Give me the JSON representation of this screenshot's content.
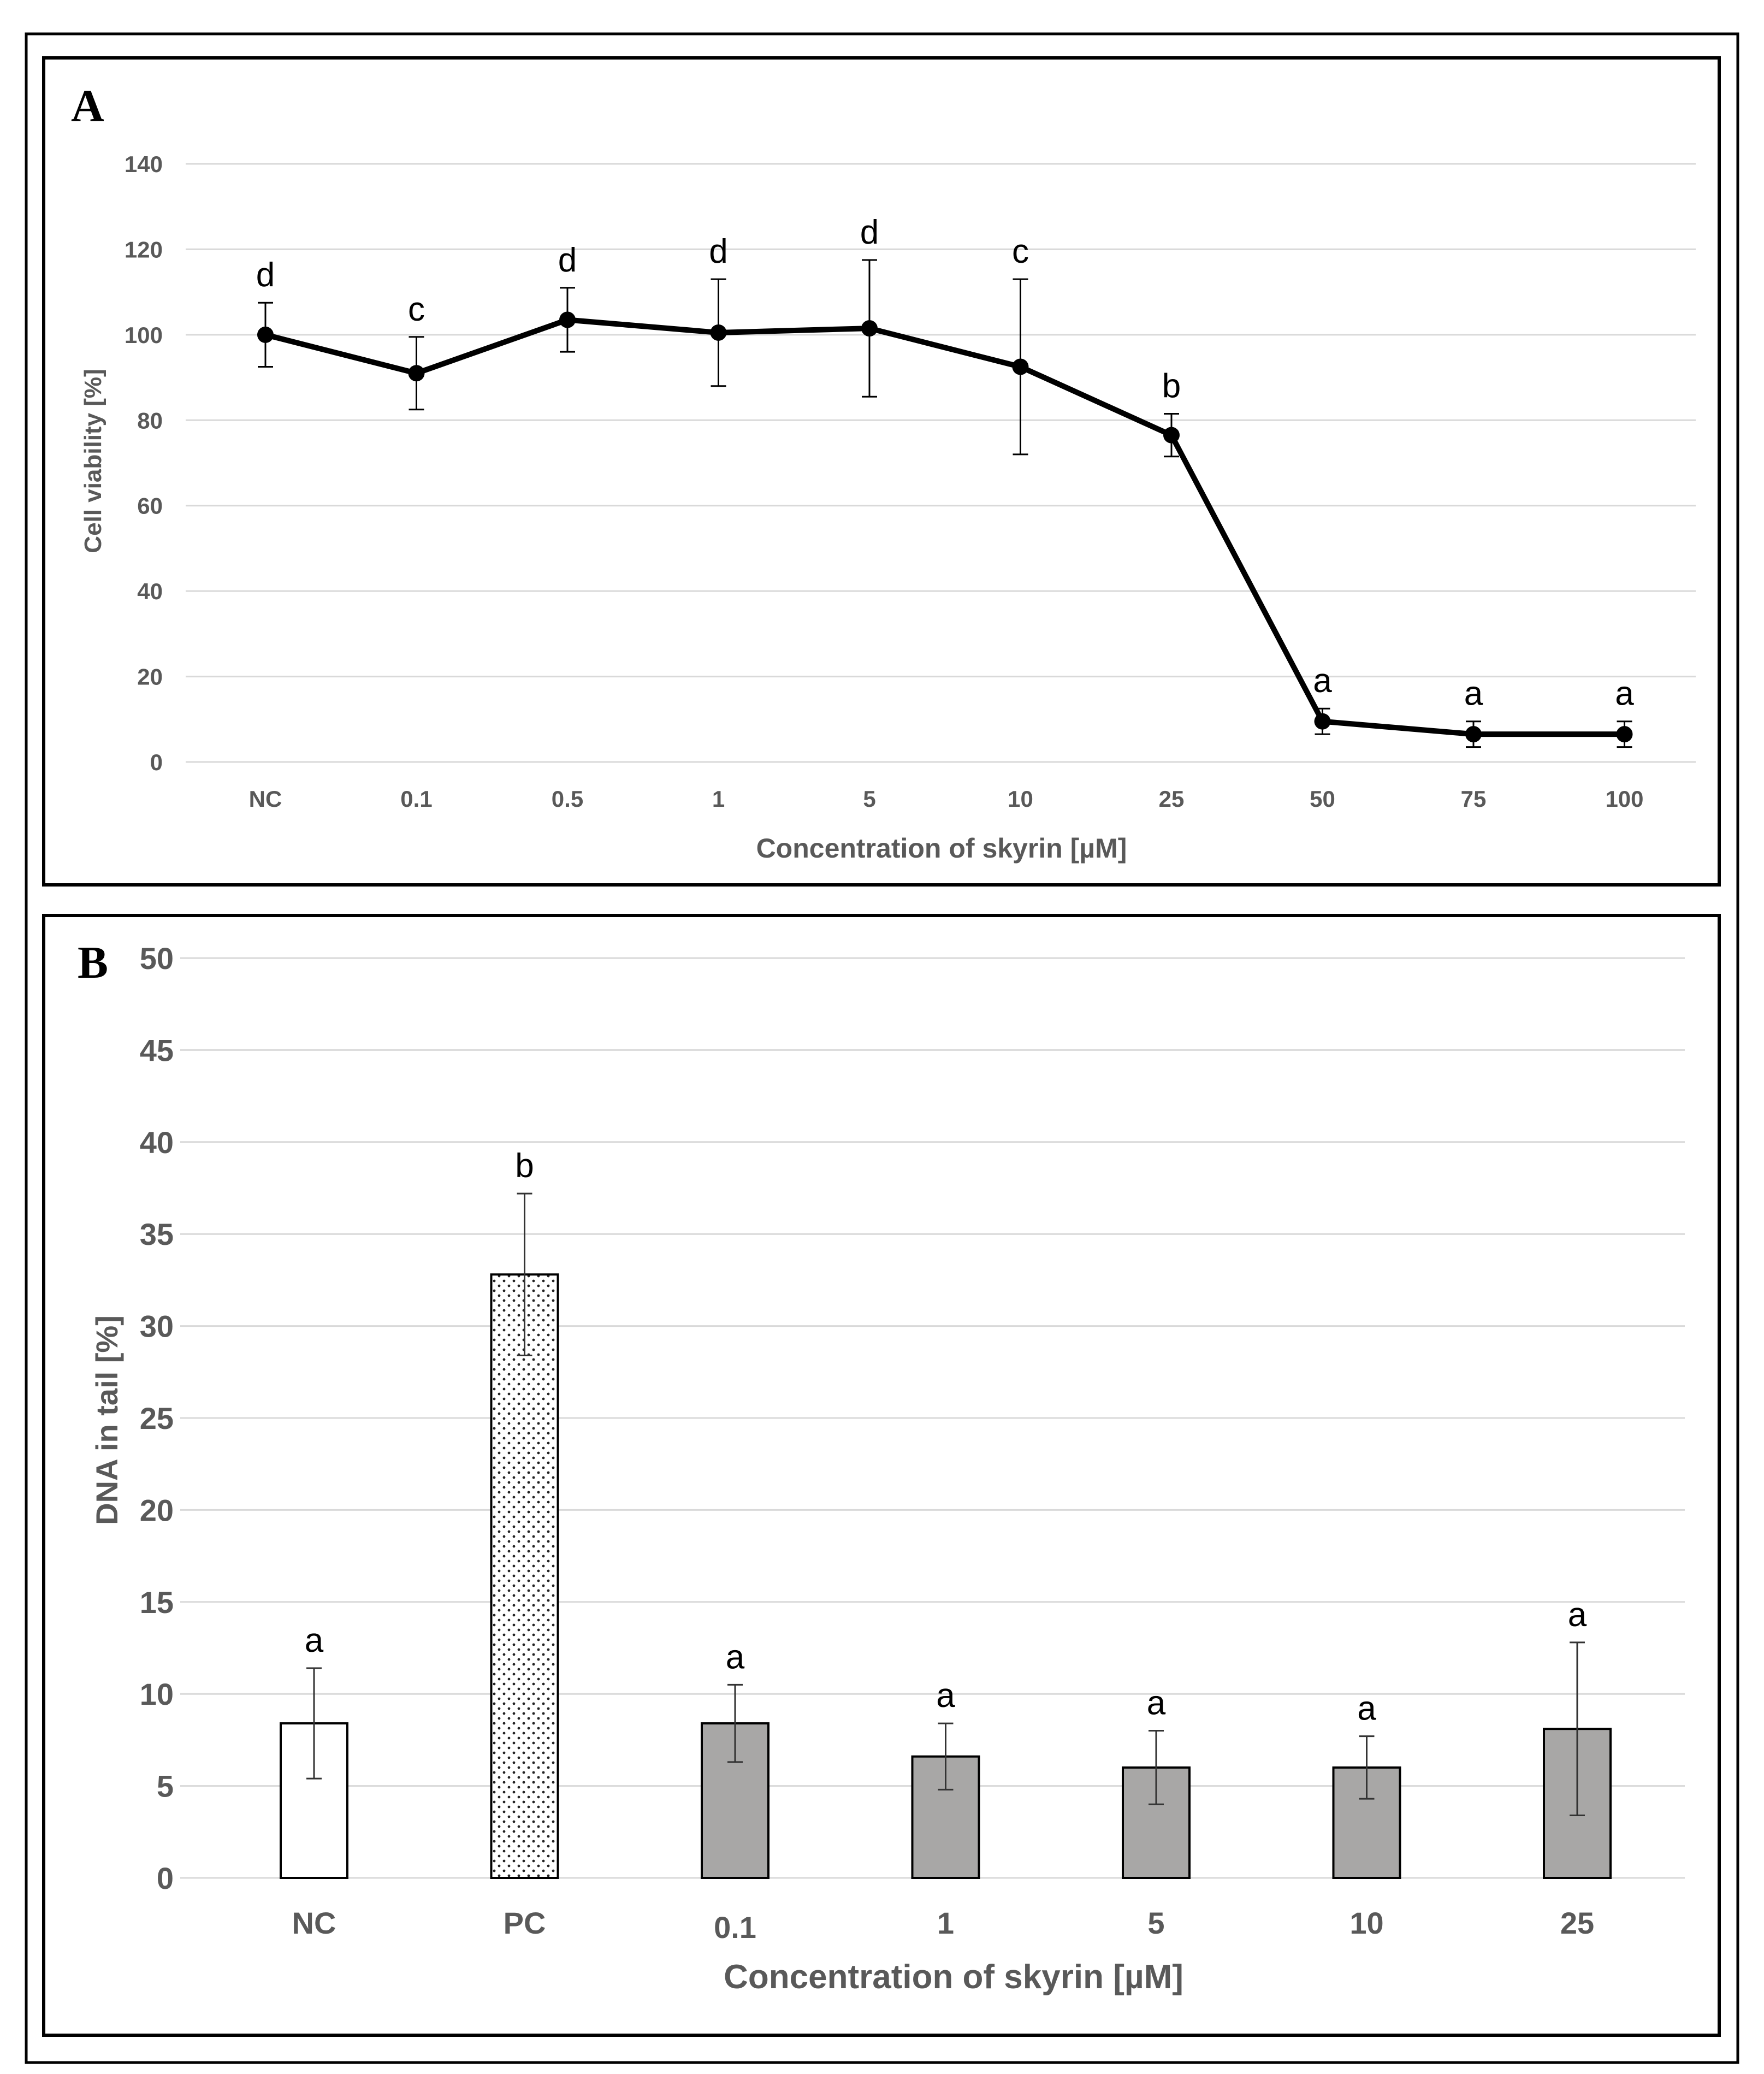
{
  "chart_data": [
    {
      "panel_label": "A",
      "type": "line",
      "title": "",
      "xlabel": "Concentration of skyrin [µM]",
      "ylabel": "Cell viability [%]",
      "ylim": [
        0,
        140
      ],
      "yticks": [
        "0",
        "20",
        "40",
        "60",
        "80",
        "100",
        "120",
        "140"
      ],
      "grid": true,
      "categories": [
        "NC",
        "0.1",
        "0.5",
        "1",
        "5",
        "10",
        "25",
        "50",
        "75",
        "100"
      ],
      "series": [
        {
          "name": "Cell viability",
          "color": "#000000",
          "values": [
            100,
            91,
            103.5,
            100.5,
            101.5,
            92.5,
            76.5,
            9.5,
            6.5,
            6.5
          ],
          "errors": [
            7.5,
            8.5,
            7.5,
            12.5,
            16,
            20.5,
            5,
            3,
            3,
            3
          ],
          "letters": [
            "d",
            "c",
            "d",
            "d",
            "d",
            "c",
            "b",
            "a",
            "a",
            "a"
          ]
        }
      ]
    },
    {
      "panel_label": "B",
      "type": "bar",
      "title": "",
      "xlabel": "Concentration of skyrin [µM]",
      "ylabel": "DNA in tail [%]",
      "ylim": [
        0,
        50
      ],
      "yticks": [
        "0",
        "5",
        "10",
        "15",
        "20",
        "25",
        "30",
        "35",
        "40",
        "45",
        "50"
      ],
      "grid": true,
      "categories": [
        "NC",
        "PC",
        "0.1",
        "1",
        "5",
        "10",
        "25"
      ],
      "series": [
        {
          "name": "DNA in tail",
          "values": [
            8.4,
            32.8,
            8.4,
            6.6,
            6.0,
            6.0,
            8.1
          ],
          "errors": [
            3.0,
            4.4,
            2.1,
            1.8,
            2.0,
            1.7,
            4.7
          ],
          "letters": [
            "a",
            "b",
            "a",
            "a",
            "a",
            "a",
            "a"
          ],
          "fills": [
            "white",
            "dotted",
            "gray",
            "gray",
            "gray",
            "gray",
            "gray"
          ]
        }
      ]
    }
  ],
  "colors": {
    "bar_gray": "#a8a7a6",
    "grid": "#d9d9d9",
    "tick_text": "#595959",
    "line": "#000000",
    "frame": "#000000"
  }
}
